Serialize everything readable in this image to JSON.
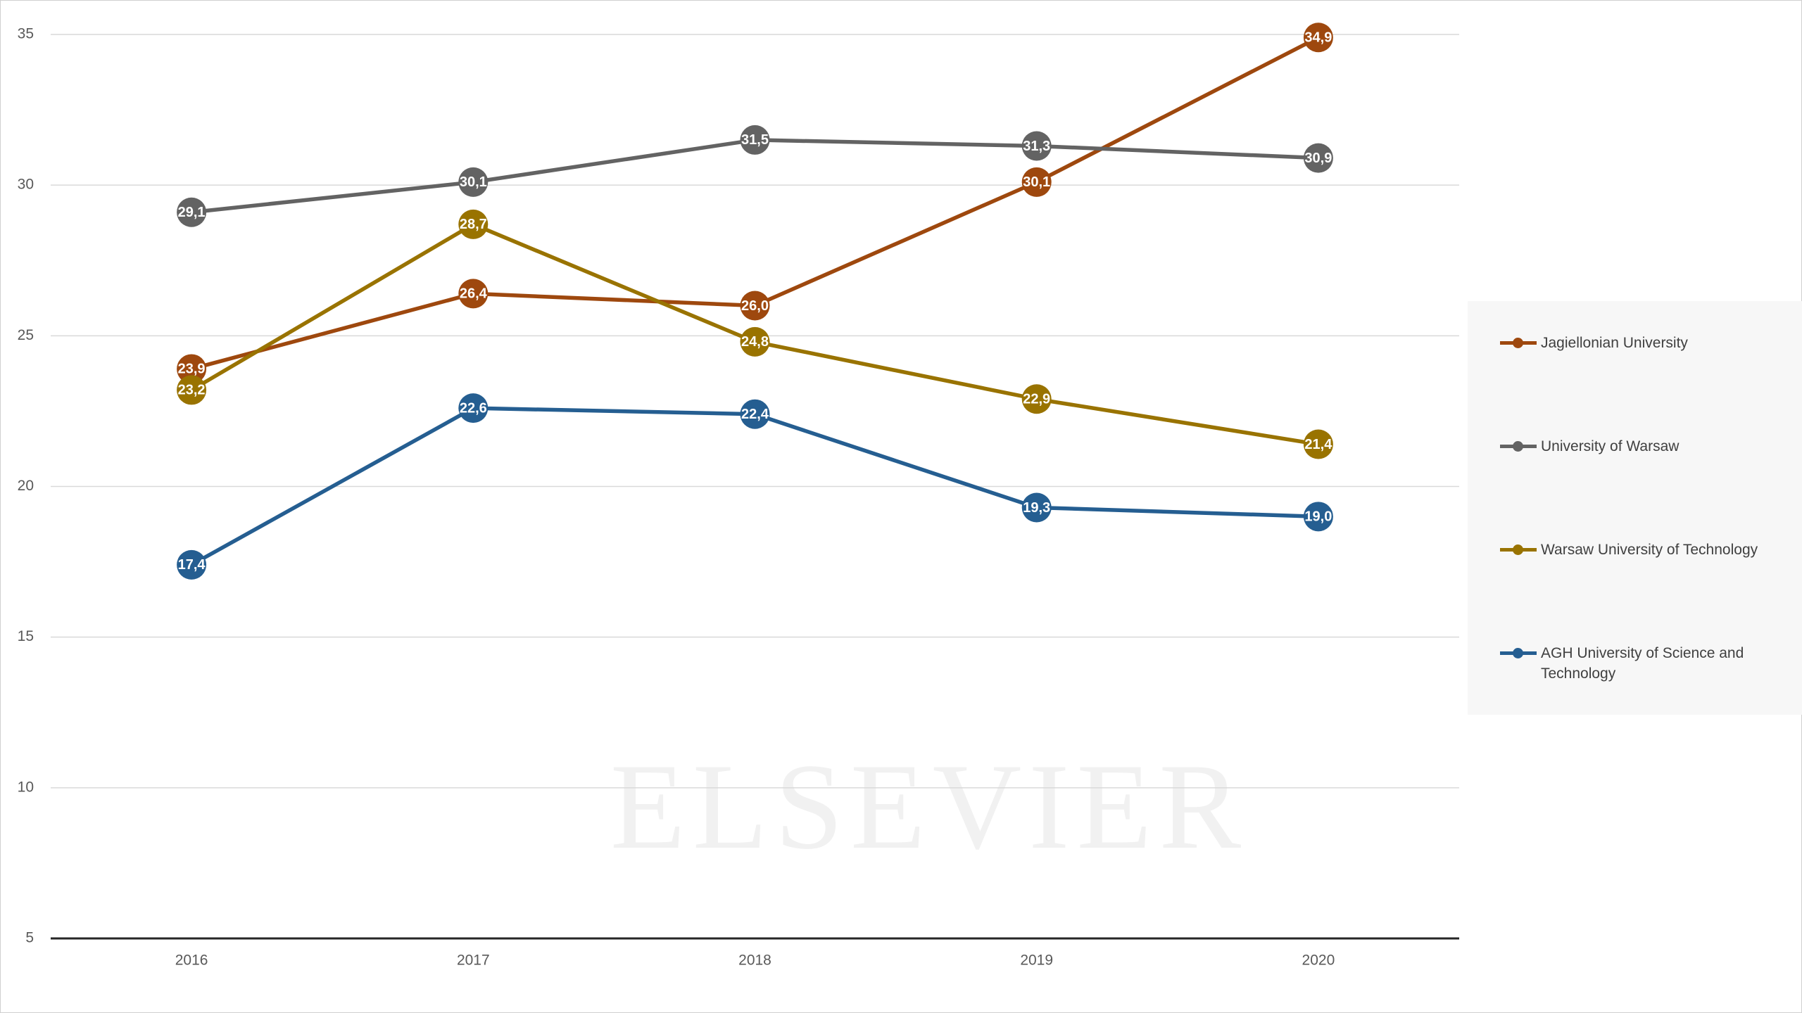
{
  "chart_data": {
    "type": "line",
    "categories": [
      "2016",
      "2017",
      "2018",
      "2019",
      "2020"
    ],
    "series": [
      {
        "name": "Jagiellonian University",
        "color": "#9e480e",
        "values": [
          23.9,
          26.4,
          26.0,
          30.1,
          34.9
        ],
        "value_labels": [
          "23,9",
          "26,4",
          "26,0",
          "30,1",
          "34,9"
        ]
      },
      {
        "name": "University of Warsaw",
        "color": "#636363",
        "values": [
          29.1,
          30.1,
          31.5,
          31.3,
          30.9
        ],
        "value_labels": [
          "29,1",
          "30,1",
          "31,5",
          "31,3",
          "30,9"
        ]
      },
      {
        "name": "Warsaw University of Technology",
        "color": "#997300",
        "values": [
          23.2,
          28.7,
          24.8,
          22.9,
          21.4
        ],
        "value_labels": [
          "23,2",
          "28,7",
          "24,8",
          "22,9",
          "21,4"
        ]
      },
      {
        "name": "AGH University of Science and Technology",
        "color": "#255e91",
        "values": [
          17.4,
          22.6,
          22.4,
          19.3,
          19.0
        ],
        "value_labels": [
          "17,4",
          "22,6",
          "22,4",
          "19,3",
          "19,0"
        ]
      }
    ],
    "ylim": [
      5,
      35
    ],
    "yticks": [
      5,
      10,
      15,
      20,
      25,
      30,
      35
    ],
    "grid": true,
    "legend": "right",
    "watermark": "ELSEVIER"
  }
}
